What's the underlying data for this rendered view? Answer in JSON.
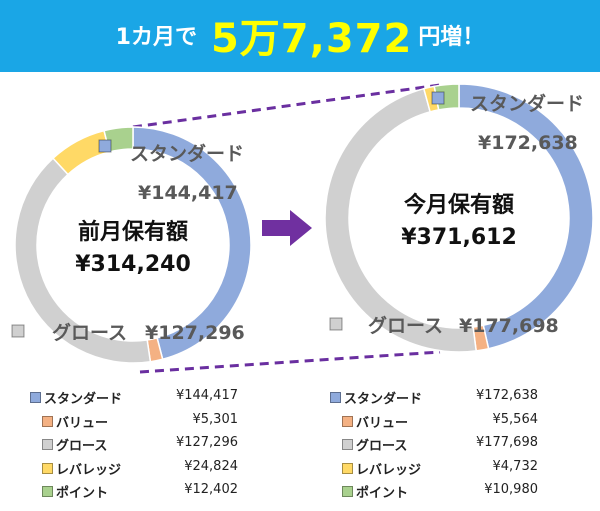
{
  "banner": {
    "prefix": "1カ月で",
    "amount": "5万7,372",
    "suffix": "円増！"
  },
  "arrow_icon": "right-arrow",
  "colors": {
    "banner": "#1aa6e6",
    "highlight": "#ffff00",
    "connector": "#6a2fa0",
    "arrow": "#7030a0"
  },
  "chart_data": [
    {
      "type": "donut",
      "center_title": "前月保有額",
      "center_total": "¥314,240",
      "slices": [
        {
          "name": "スタンダード",
          "value": 144417,
          "label": "¥144,417",
          "color": "#8faadc"
        },
        {
          "name": "バリュー",
          "value": 5301,
          "label": "¥5,301",
          "color": "#f4b183"
        },
        {
          "name": "グロース",
          "value": 127296,
          "label": "¥127,296",
          "color": "#d0d0d0"
        },
        {
          "name": "レバレッジ",
          "value": 24824,
          "label": "¥24,824",
          "color": "#ffd966"
        },
        {
          "name": "ポイント",
          "value": 12402,
          "label": "¥12,402",
          "color": "#a9d18e"
        }
      ],
      "callouts": [
        {
          "name": "スタンダード",
          "value_label": "¥144,417"
        },
        {
          "name": "グロース",
          "value_label": "¥127,296"
        }
      ]
    },
    {
      "type": "donut",
      "center_title": "今月保有額",
      "center_total": "¥371,612",
      "slices": [
        {
          "name": "スタンダード",
          "value": 172638,
          "label": "¥172,638",
          "color": "#8faadc"
        },
        {
          "name": "バリュー",
          "value": 5564,
          "label": "¥5,564",
          "color": "#f4b183"
        },
        {
          "name": "グロース",
          "value": 177698,
          "label": "¥177,698",
          "color": "#d0d0d0"
        },
        {
          "name": "レバレッジ",
          "value": 4732,
          "label": "¥4,732",
          "color": "#ffd966"
        },
        {
          "name": "ポイント",
          "value": 10980,
          "label": "¥10,980",
          "color": "#a9d18e"
        }
      ],
      "callouts": [
        {
          "name": "スタンダード",
          "value_label": "¥172,638"
        },
        {
          "name": "グロース",
          "value_label": "¥177,698"
        }
      ]
    }
  ]
}
